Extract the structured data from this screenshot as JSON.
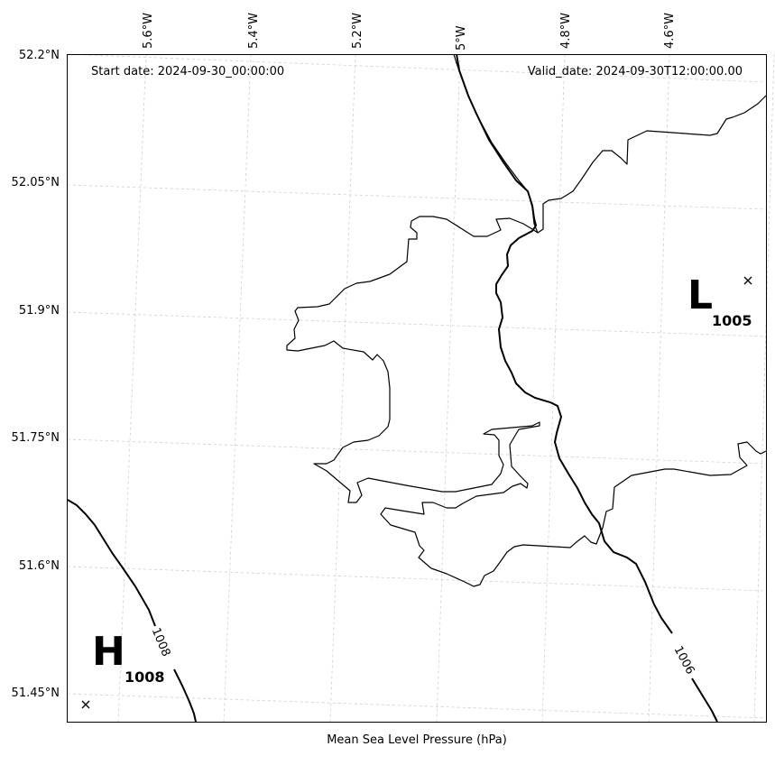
{
  "header": {
    "start_date": "Start date: 2024-09-30_00:00:00",
    "valid_date": "Valid_date: 2024-09-30T12:00:00.00"
  },
  "footer": {
    "label": "Mean Sea Level Pressure (hPa)"
  },
  "axes": {
    "lat_ticks": [
      "52.2°N",
      "52.05°N",
      "51.9°N",
      "51.75°N",
      "51.6°N",
      "51.45°N"
    ],
    "lon_ticks": [
      "5.6°W",
      "5.4°W",
      "5.2°W",
      "5°W",
      "4.8°W",
      "4.6°W"
    ]
  },
  "isobars": [
    {
      "value": "1008"
    },
    {
      "value": "1006"
    }
  ],
  "pressure_centers": [
    {
      "type": "H",
      "value": "1008"
    },
    {
      "type": "L",
      "value": "1005"
    }
  ]
}
